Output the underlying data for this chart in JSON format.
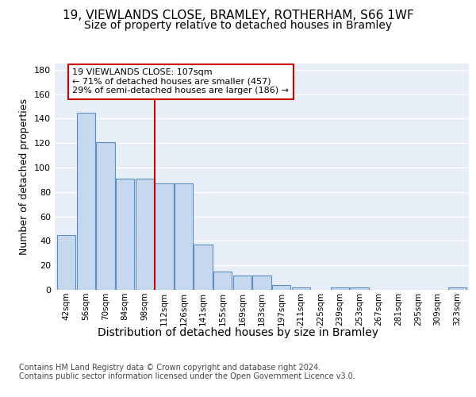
{
  "title1": "19, VIEWLANDS CLOSE, BRAMLEY, ROTHERHAM, S66 1WF",
  "title2": "Size of property relative to detached houses in Bramley",
  "xlabel": "Distribution of detached houses by size in Bramley",
  "ylabel": "Number of detached properties",
  "bin_labels": [
    "42sqm",
    "56sqm",
    "70sqm",
    "84sqm",
    "98sqm",
    "112sqm",
    "126sqm",
    "141sqm",
    "155sqm",
    "169sqm",
    "183sqm",
    "197sqm",
    "211sqm",
    "225sqm",
    "239sqm",
    "253sqm",
    "267sqm",
    "281sqm",
    "295sqm",
    "309sqm",
    "323sqm"
  ],
  "bar_heights": [
    45,
    145,
    121,
    91,
    91,
    87,
    87,
    37,
    15,
    12,
    12,
    4,
    2,
    0,
    2,
    2,
    0,
    0,
    0,
    0,
    2
  ],
  "bar_color": "#c5d8ee",
  "bar_edge_color": "#5a8fc5",
  "vline_color": "#cc0000",
  "annotation_text": "19 VIEWLANDS CLOSE: 107sqm\n← 71% of detached houses are smaller (457)\n29% of semi-detached houses are larger (186) →",
  "annotation_box_color": "#ffffff",
  "annotation_box_edge_color": "#cc0000",
  "ylim": [
    0,
    185
  ],
  "yticks": [
    0,
    20,
    40,
    60,
    80,
    100,
    120,
    140,
    160,
    180
  ],
  "footer_text": "Contains HM Land Registry data © Crown copyright and database right 2024.\nContains public sector information licensed under the Open Government Licence v3.0.",
  "background_color": "#e8eef8",
  "grid_color": "#ffffff",
  "title1_fontsize": 11,
  "title2_fontsize": 10,
  "xlabel_fontsize": 10,
  "ylabel_fontsize": 9,
  "footer_fontsize": 7
}
